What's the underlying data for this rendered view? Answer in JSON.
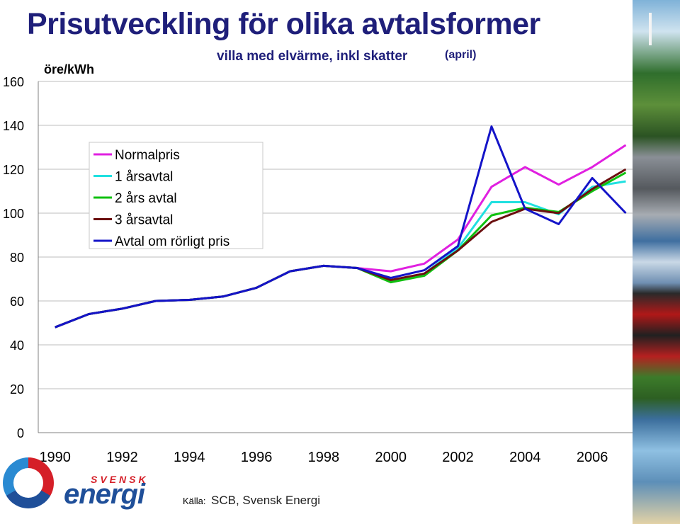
{
  "chart_data": {
    "type": "line",
    "title": "Prisutveckling för olika avtalsformer",
    "subtitle": "villa med elvärme, inkl skatter",
    "subtitle_note": "(april)",
    "ylabel": "öre/kWh",
    "xlabel": "",
    "ylim": [
      0,
      160
    ],
    "xlim": [
      1989.5,
      2007.2
    ],
    "yticks": [
      0,
      20,
      40,
      60,
      80,
      100,
      120,
      140,
      160
    ],
    "xticks": [
      1990,
      1992,
      1994,
      1996,
      1998,
      2000,
      2002,
      2004,
      2006
    ],
    "grid": true,
    "legend_position": "top-left",
    "x": [
      1990,
      1991,
      1992,
      1993,
      1994,
      1995,
      1996,
      1997,
      1998,
      1999,
      2000,
      2001,
      2002,
      2003,
      2004,
      2005,
      2006,
      2007
    ],
    "series": [
      {
        "name": "Normalpris",
        "color": "#e020e0",
        "values": [
          48,
          54,
          56.5,
          60,
          60.5,
          62,
          66,
          73.5,
          76,
          75,
          73.5,
          77,
          88,
          112,
          121,
          113,
          121,
          131
        ]
      },
      {
        "name": "1 årsavtal",
        "color": "#20e0e0",
        "values": [
          48,
          54,
          56.5,
          60,
          60.5,
          62,
          66,
          73.5,
          76,
          75,
          69,
          72.5,
          84,
          105,
          105,
          99.5,
          112,
          114.5
        ]
      },
      {
        "name": "2 års avtal",
        "color": "#10c010",
        "values": [
          48,
          54,
          56.5,
          60,
          60.5,
          62,
          66,
          73.5,
          76,
          75,
          68.5,
          71.5,
          83,
          99,
          102.5,
          100.5,
          110,
          118.5
        ]
      },
      {
        "name": "3 årsavtal",
        "color": "#6b0f0f",
        "values": [
          48,
          54,
          56.5,
          60,
          60.5,
          62,
          66,
          73.5,
          76,
          75,
          69.5,
          72.5,
          83,
          96,
          102,
          100,
          111,
          120
        ]
      },
      {
        "name": "Avtal om rörligt pris",
        "color": "#1414c8",
        "values": [
          48,
          54,
          56.5,
          60,
          60.5,
          62,
          66,
          73.5,
          76,
          75,
          70.5,
          74,
          85,
          139.5,
          102,
          95,
          116,
          100
        ]
      }
    ]
  },
  "footer": {
    "source_label": "Källa:",
    "source_text": "SCB, Svensk Energi",
    "logo_top": "SVENSK",
    "logo_main": "energi"
  },
  "decor": {
    "side_image": "energy-photo-collage",
    "logo_icon": "svensk-energi-ring-logo"
  }
}
